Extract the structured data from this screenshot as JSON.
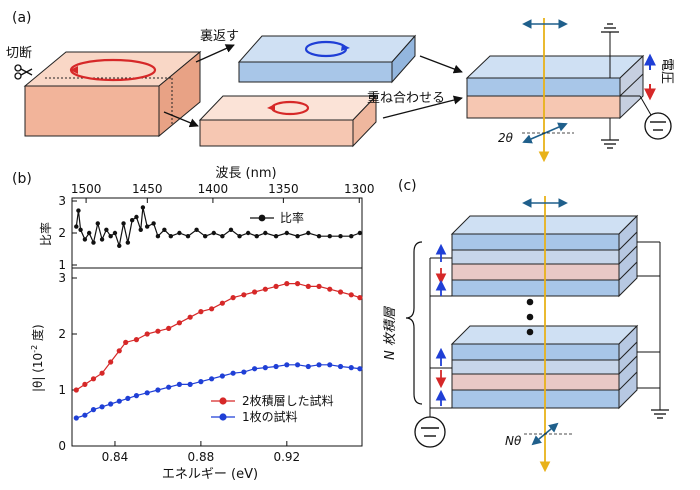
{
  "panels": {
    "a": {
      "label": "(a)",
      "cut_label": "切断",
      "flip_label": "裏返す",
      "stack_label": "重ね合わせる",
      "voltage_label": "電圧",
      "angle_label": "2θ",
      "colors": {
        "orange_top": "#f9d7c6",
        "orange_side": "#f2b49a",
        "blue_top": "#cfe0f3",
        "blue_side": "#a8c6e8",
        "arrow_red": "#d62828",
        "arrow_blue": "#1f3fd6",
        "beam": "#e8b21a"
      }
    },
    "b": {
      "label": "(b)",
      "top_axis_label": "波長 (nm)",
      "ratio_axis_label": "比率",
      "theta_axis_label": "|θ| (10",
      "theta_axis_exp": "-2",
      "theta_axis_unit": " 度)",
      "x_axis_label": "エネルギー (eV)",
      "ratio_legend": "比率",
      "legend_two": "2枚積層した試料",
      "legend_one": "1枚の試料"
    },
    "c": {
      "label": "(c)",
      "stack_label": "N 枚積層",
      "angle_label": "Nθ"
    }
  },
  "chart_data": {
    "type": "line",
    "x_range": [
      0.82,
      0.955
    ],
    "x_ticks": [
      0.84,
      0.88,
      0.92
    ],
    "x_tick_labels": [
      "0.84",
      "0.88",
      "0.92"
    ],
    "wavelength_ticks": [
      1500,
      1450,
      1400,
      1350,
      1300
    ],
    "wavelength_tick_labels": [
      "1500",
      "1450",
      "1400",
      "1350",
      "1300"
    ],
    "ratio_ylim": [
      1,
      3
    ],
    "ratio_yticks": [
      1,
      2,
      3
    ],
    "theta_ylim": [
      0,
      3
    ],
    "theta_yticks": [
      0,
      1,
      2,
      3
    ],
    "series": [
      {
        "name": "比率",
        "color": "#111111",
        "points": [
          [
            0.822,
            2.2
          ],
          [
            0.823,
            2.7
          ],
          [
            0.824,
            2.1
          ],
          [
            0.826,
            1.8
          ],
          [
            0.828,
            2.0
          ],
          [
            0.83,
            1.7
          ],
          [
            0.832,
            2.3
          ],
          [
            0.834,
            1.8
          ],
          [
            0.836,
            2.1
          ],
          [
            0.838,
            1.9
          ],
          [
            0.84,
            2.0
          ],
          [
            0.842,
            1.6
          ],
          [
            0.844,
            2.3
          ],
          [
            0.846,
            1.7
          ],
          [
            0.848,
            2.4
          ],
          [
            0.85,
            2.5
          ],
          [
            0.852,
            2.1
          ],
          [
            0.853,
            2.8
          ],
          [
            0.855,
            2.2
          ],
          [
            0.858,
            2.3
          ],
          [
            0.86,
            1.9
          ],
          [
            0.863,
            2.1
          ],
          [
            0.866,
            1.9
          ],
          [
            0.87,
            2.0
          ],
          [
            0.874,
            1.9
          ],
          [
            0.878,
            2.1
          ],
          [
            0.882,
            1.9
          ],
          [
            0.886,
            2.0
          ],
          [
            0.89,
            1.9
          ],
          [
            0.894,
            2.1
          ],
          [
            0.898,
            1.9
          ],
          [
            0.902,
            2.0
          ],
          [
            0.906,
            1.9
          ],
          [
            0.91,
            2.0
          ],
          [
            0.915,
            1.9
          ],
          [
            0.92,
            2.0
          ],
          [
            0.925,
            1.9
          ],
          [
            0.93,
            2.0
          ],
          [
            0.935,
            1.9
          ],
          [
            0.94,
            1.9
          ],
          [
            0.945,
            1.9
          ],
          [
            0.95,
            1.9
          ],
          [
            0.954,
            2.0
          ]
        ]
      },
      {
        "name": "2枚積層した試料",
        "color": "#d62828",
        "points": [
          [
            0.822,
            1.0
          ],
          [
            0.826,
            1.1
          ],
          [
            0.83,
            1.2
          ],
          [
            0.834,
            1.3
          ],
          [
            0.838,
            1.5
          ],
          [
            0.842,
            1.7
          ],
          [
            0.845,
            1.85
          ],
          [
            0.85,
            1.9
          ],
          [
            0.855,
            2.0
          ],
          [
            0.86,
            2.05
          ],
          [
            0.865,
            2.1
          ],
          [
            0.87,
            2.2
          ],
          [
            0.875,
            2.3
          ],
          [
            0.88,
            2.4
          ],
          [
            0.885,
            2.45
          ],
          [
            0.89,
            2.55
          ],
          [
            0.895,
            2.65
          ],
          [
            0.9,
            2.7
          ],
          [
            0.905,
            2.75
          ],
          [
            0.91,
            2.8
          ],
          [
            0.915,
            2.85
          ],
          [
            0.92,
            2.9
          ],
          [
            0.925,
            2.9
          ],
          [
            0.93,
            2.85
          ],
          [
            0.935,
            2.85
          ],
          [
            0.94,
            2.8
          ],
          [
            0.945,
            2.75
          ],
          [
            0.95,
            2.7
          ],
          [
            0.954,
            2.65
          ]
        ]
      },
      {
        "name": "1枚の試料",
        "color": "#1f3fd6",
        "points": [
          [
            0.822,
            0.5
          ],
          [
            0.826,
            0.55
          ],
          [
            0.83,
            0.65
          ],
          [
            0.834,
            0.7
          ],
          [
            0.838,
            0.75
          ],
          [
            0.842,
            0.8
          ],
          [
            0.846,
            0.85
          ],
          [
            0.85,
            0.9
          ],
          [
            0.855,
            0.95
          ],
          [
            0.86,
            1.0
          ],
          [
            0.865,
            1.05
          ],
          [
            0.87,
            1.1
          ],
          [
            0.875,
            1.1
          ],
          [
            0.88,
            1.15
          ],
          [
            0.885,
            1.2
          ],
          [
            0.89,
            1.25
          ],
          [
            0.895,
            1.3
          ],
          [
            0.9,
            1.32
          ],
          [
            0.905,
            1.38
          ],
          [
            0.91,
            1.4
          ],
          [
            0.915,
            1.42
          ],
          [
            0.92,
            1.45
          ],
          [
            0.925,
            1.45
          ],
          [
            0.93,
            1.42
          ],
          [
            0.935,
            1.45
          ],
          [
            0.94,
            1.45
          ],
          [
            0.945,
            1.42
          ],
          [
            0.95,
            1.4
          ],
          [
            0.954,
            1.38
          ]
        ]
      }
    ]
  }
}
